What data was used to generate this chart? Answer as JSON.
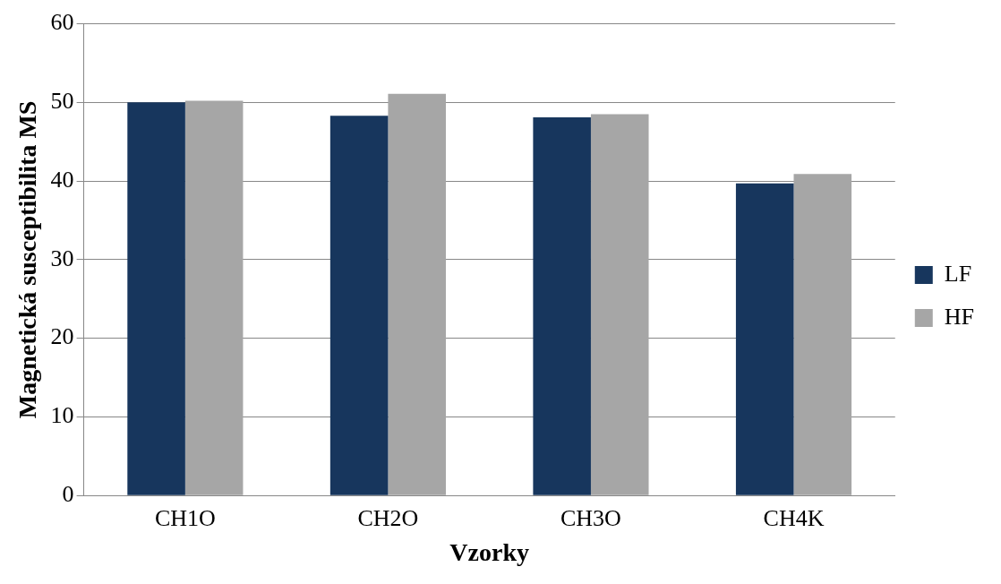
{
  "chart_data": {
    "type": "bar",
    "xlabel": "Vzorky",
    "ylabel": "Magnetická susceptibilita MS",
    "categories": [
      "CH1O",
      "CH2O",
      "CH3O",
      "CH4K"
    ],
    "series": [
      {
        "name": "LF",
        "color": "#17365d",
        "values": [
          50.0,
          48.3,
          48.1,
          39.7
        ]
      },
      {
        "name": "HF",
        "color": "#a6a6a6",
        "values": [
          50.2,
          51.1,
          48.5,
          40.9
        ]
      }
    ],
    "ylim": [
      0,
      60
    ],
    "yticks": [
      0,
      10,
      20,
      30,
      40,
      50,
      60
    ],
    "grid": "y",
    "legend": "right"
  }
}
